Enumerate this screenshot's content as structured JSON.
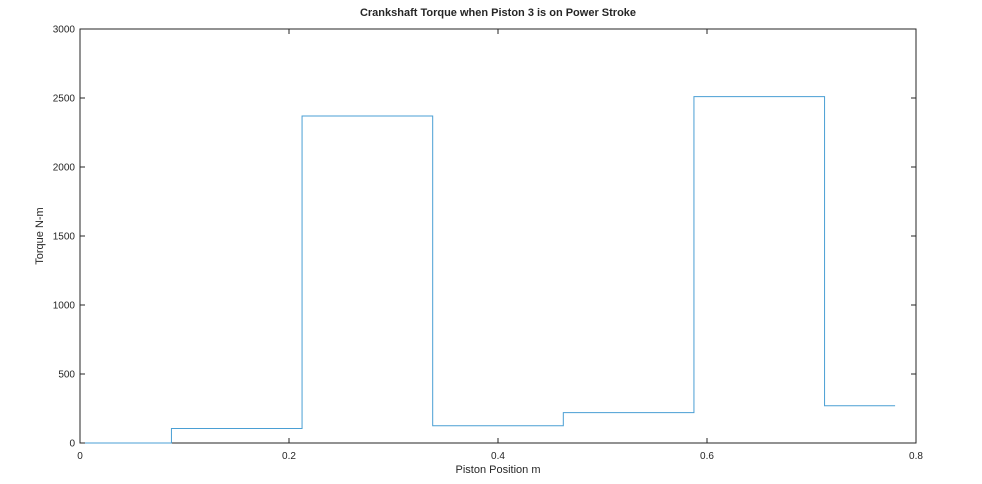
{
  "chart_data": {
    "type": "line",
    "title": "Crankshaft Torque when Piston 3 is on Power Stroke",
    "xlabel": "Piston Position m",
    "ylabel": "Torque N-m",
    "xlim": [
      0,
      0.8
    ],
    "ylim": [
      0,
      3000
    ],
    "xticks": [
      0,
      0.2,
      0.4,
      0.6,
      0.8
    ],
    "xtick_labels": [
      "0",
      "0.2",
      "0.4",
      "0.6",
      "0.8"
    ],
    "yticks": [
      0,
      500,
      1000,
      1500,
      2000,
      2500,
      3000
    ],
    "ytick_labels": [
      "0",
      "500",
      "1000",
      "1500",
      "2000",
      "2500",
      "3000"
    ],
    "grid": false,
    "box": true,
    "series": [
      {
        "color": "#4a9fd4",
        "step": "post",
        "x": [
          0,
          0.0875,
          0.2125,
          0.3375,
          0.4625,
          0.5875,
          0.7125,
          0.78
        ],
        "y": [
          0,
          105,
          2370,
          125,
          220,
          2510,
          270,
          270
        ]
      }
    ]
  },
  "colors": {
    "axis": "#262626",
    "background": "#ffffff"
  }
}
